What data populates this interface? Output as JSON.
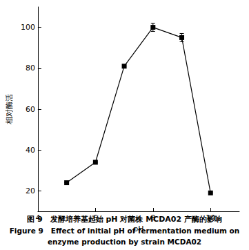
{
  "chart_data": {
    "type": "line",
    "caption": [
      "图 9　发酵培养基起始 pH 对菌株 MCDA02 产酶的影响",
      "Figure 9　Effect of initial pH of fermentation medium on",
      "enzyme production by strain MCDA02"
    ],
    "x_label": "pH",
    "y_label": "相对酶活",
    "x": [
      5,
      6,
      7,
      8,
      9,
      10
    ],
    "values": [
      24,
      34,
      81,
      100,
      95,
      19
    ],
    "errors": [
      0,
      0,
      0,
      2,
      2,
      0
    ],
    "color": "#000000",
    "marker": "square",
    "xlim": [
      4,
      11
    ],
    "xticks": [
      4,
      6,
      8,
      10
    ],
    "ylim": [
      10,
      110
    ],
    "yticks": [
      20,
      40,
      60,
      80,
      100
    ],
    "grid": false
  }
}
